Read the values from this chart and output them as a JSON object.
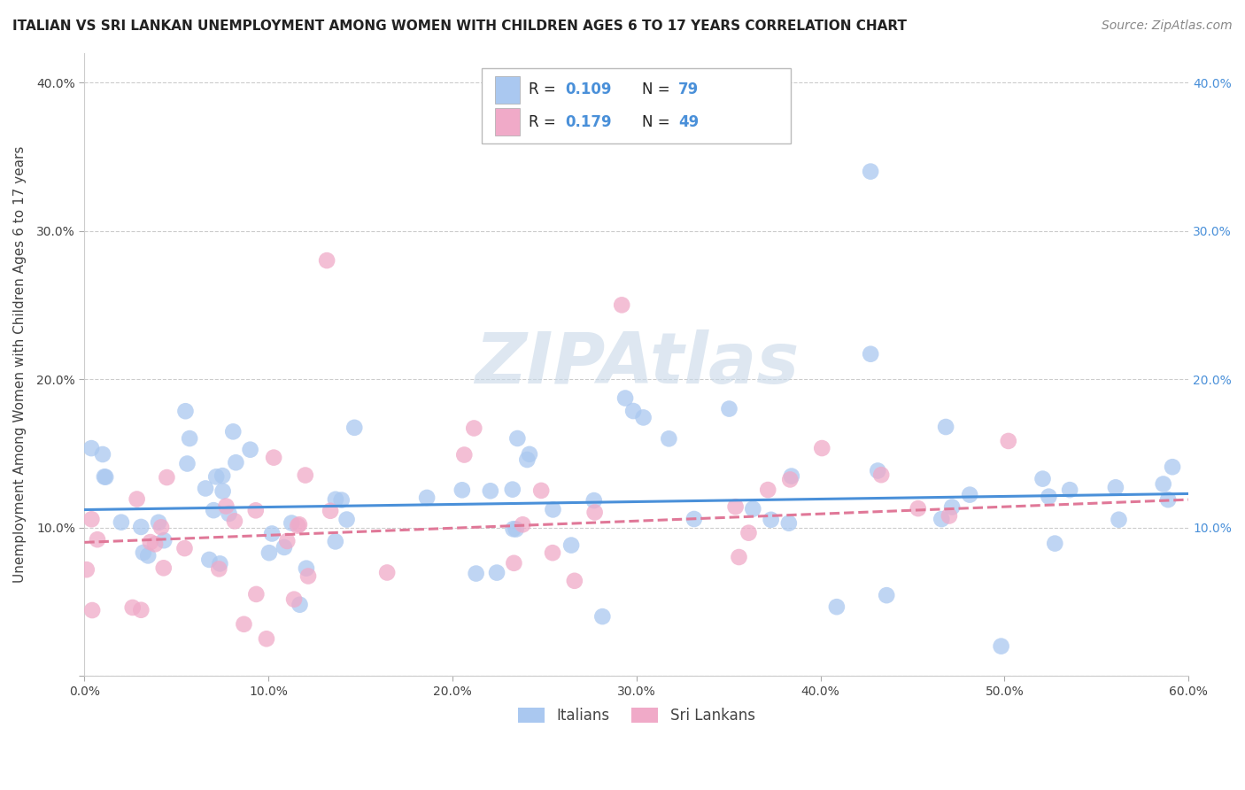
{
  "title": "ITALIAN VS SRI LANKAN UNEMPLOYMENT AMONG WOMEN WITH CHILDREN AGES 6 TO 17 YEARS CORRELATION CHART",
  "source": "Source: ZipAtlas.com",
  "ylabel": "Unemployment Among Women with Children Ages 6 to 17 years",
  "xlim": [
    0.0,
    0.6
  ],
  "ylim": [
    0.0,
    0.42
  ],
  "xtick_vals": [
    0.0,
    0.1,
    0.2,
    0.3,
    0.4,
    0.5,
    0.6
  ],
  "ytick_vals": [
    0.0,
    0.1,
    0.2,
    0.3,
    0.4
  ],
  "xtick_labels": [
    "0.0%",
    "10.0%",
    "20.0%",
    "30.0%",
    "40.0%",
    "50.0%",
    "60.0%"
  ],
  "ytick_labels": [
    "",
    "10.0%",
    "20.0%",
    "30.0%",
    "40.0%"
  ],
  "legend_labels": [
    "Italians",
    "Sri Lankans"
  ],
  "legend_r1": "R = 0.109",
  "legend_n1": "N = 79",
  "legend_r2": "R = 0.179",
  "legend_n2": "N = 49",
  "italian_color": "#aac8f0",
  "sri_lankan_color": "#f0aac8",
  "italian_line_color": "#4a90d9",
  "sri_lankan_line_color": "#e07898",
  "watermark_color": "#c8d8e8",
  "background_color": "#ffffff",
  "title_fontsize": 11,
  "label_fontsize": 11,
  "tick_fontsize": 10,
  "legend_fontsize": 12,
  "source_fontsize": 10,
  "italian_slope": 0.018,
  "italian_intercept": 0.112,
  "sri_lankan_slope": 0.048,
  "sri_lankan_intercept": 0.09
}
